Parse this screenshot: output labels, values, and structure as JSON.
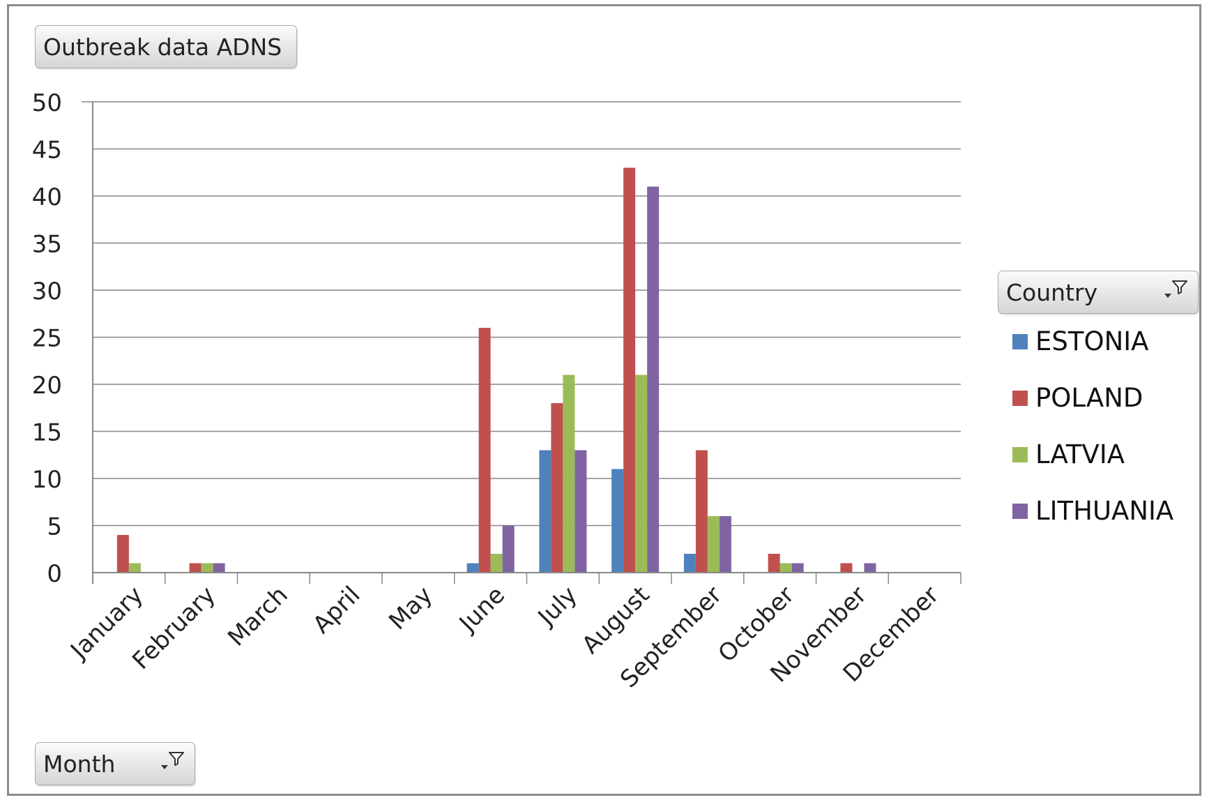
{
  "buttons": {
    "data_field": "Outbreak data ADNS",
    "legend_field": "Country",
    "axis_field": "Month"
  },
  "icons": {
    "filter": "filter-dropdown-icon"
  },
  "chart_data": {
    "type": "bar",
    "title": "",
    "xlabel": "",
    "ylabel": "",
    "ylim": [
      0,
      50
    ],
    "yticks": [
      0,
      5,
      10,
      15,
      20,
      25,
      30,
      35,
      40,
      45,
      50
    ],
    "grid": true,
    "legend_position": "right",
    "categories": [
      "January",
      "February",
      "March",
      "April",
      "May",
      "June",
      "July",
      "August",
      "September",
      "October",
      "November",
      "December"
    ],
    "series": [
      {
        "name": "ESTONIA",
        "color": "#4f81bd",
        "values": [
          0,
          0,
          0,
          0,
          0,
          1,
          13,
          11,
          2,
          0,
          0,
          0
        ]
      },
      {
        "name": "POLAND",
        "color": "#c0504d",
        "values": [
          4,
          1,
          0,
          0,
          0,
          26,
          18,
          43,
          13,
          2,
          1,
          0
        ]
      },
      {
        "name": "LATVIA",
        "color": "#9bbb59",
        "values": [
          1,
          1,
          0,
          0,
          0,
          2,
          21,
          21,
          6,
          1,
          0,
          0
        ]
      },
      {
        "name": "LITHUANIA",
        "color": "#8064a2",
        "values": [
          0,
          1,
          0,
          0,
          0,
          5,
          13,
          41,
          6,
          1,
          1,
          0
        ]
      }
    ]
  }
}
